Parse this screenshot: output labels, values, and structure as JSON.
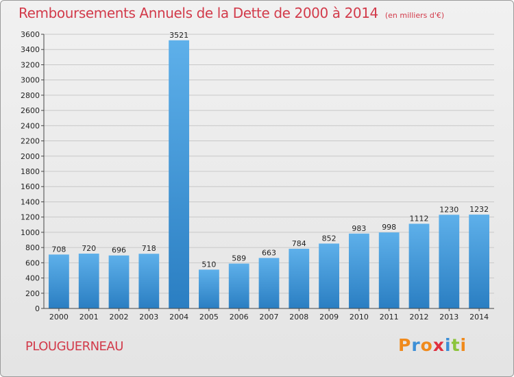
{
  "header": {
    "title": "Remboursements Annuels de la Dette de 2000 à 2014",
    "subtitle": "(en milliers d'€)"
  },
  "footer": {
    "commune": "PLOUGUERNEAU",
    "logo_text": "Proxiti",
    "logo_colors": [
      "#f08a1c",
      "#3d8fd6",
      "#f08a1c",
      "#e02f3e",
      "#3d8fd6",
      "#8cc43c",
      "#f08a1c"
    ]
  },
  "colors": {
    "title": "#d23a4a",
    "bar_top": "#5eb0ea",
    "bar_bottom": "#2a7ec2",
    "grid": "#c8c8c8",
    "axis_text": "#222222"
  },
  "chart_data": {
    "type": "bar",
    "categories": [
      "2000",
      "2001",
      "2002",
      "2003",
      "2004",
      "2005",
      "2006",
      "2007",
      "2008",
      "2009",
      "2010",
      "2011",
      "2012",
      "2013",
      "2014"
    ],
    "values": [
      708,
      720,
      696,
      718,
      3521,
      510,
      589,
      663,
      784,
      852,
      983,
      998,
      1112,
      1230,
      1232
    ],
    "ylim": [
      0,
      3600
    ],
    "yticks": [
      0,
      200,
      400,
      600,
      800,
      1000,
      1200,
      1400,
      1600,
      1800,
      2000,
      2200,
      2400,
      2600,
      2800,
      3000,
      3200,
      3400,
      3600
    ],
    "grid": true,
    "data_labels": true
  }
}
